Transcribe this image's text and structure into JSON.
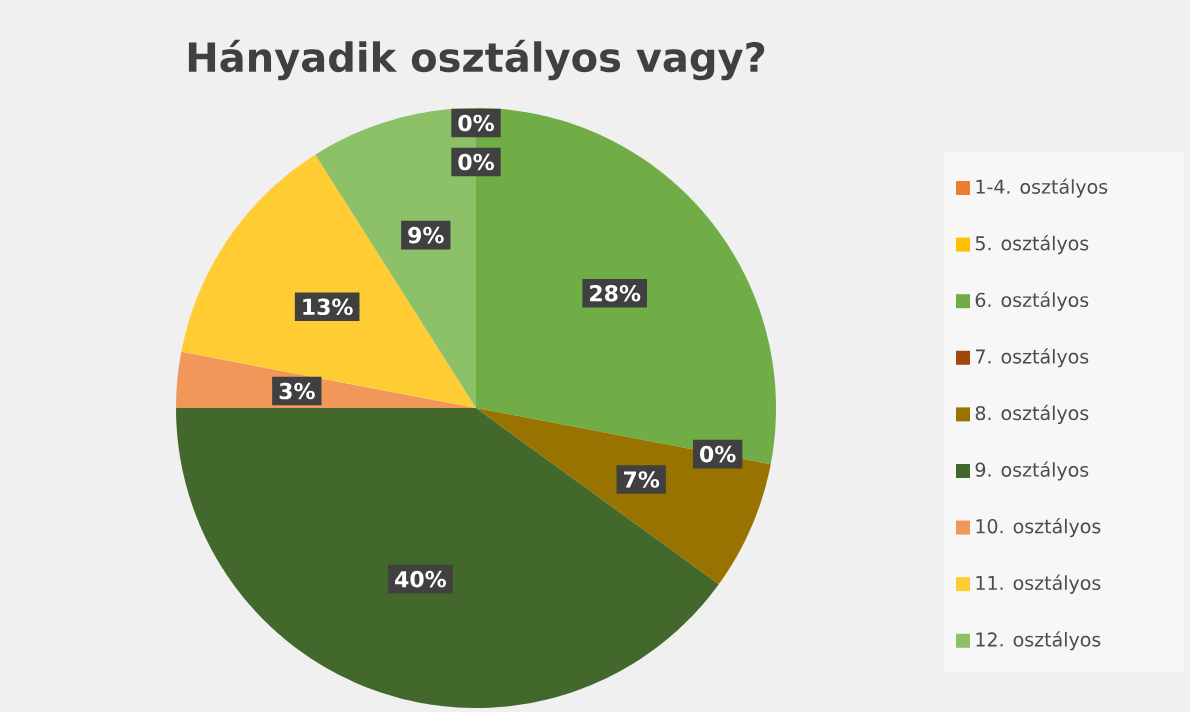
{
  "chart_data": {
    "type": "pie",
    "title": "Hányadik osztályos vagy?",
    "categories": [
      "1-4. osztályos",
      "5. osztályos",
      "6. osztályos",
      "7. osztályos",
      "8. osztályos",
      "9. osztályos",
      "10. osztályos",
      "11. osztályos",
      "12. osztályos"
    ],
    "values": [
      0,
      0,
      28,
      0,
      7,
      40,
      3,
      13,
      9
    ],
    "colors": [
      "#ed7d31",
      "#ffc000",
      "#70ad47",
      "#9e480e",
      "#997300",
      "#43682b",
      "#f1975a",
      "#ffcd33",
      "#8cc168"
    ],
    "value_labels": [
      "0%",
      "0%",
      "28%",
      "0%",
      "7%",
      "40%",
      "3%",
      "13%",
      "9%"
    ],
    "legend": "right"
  }
}
